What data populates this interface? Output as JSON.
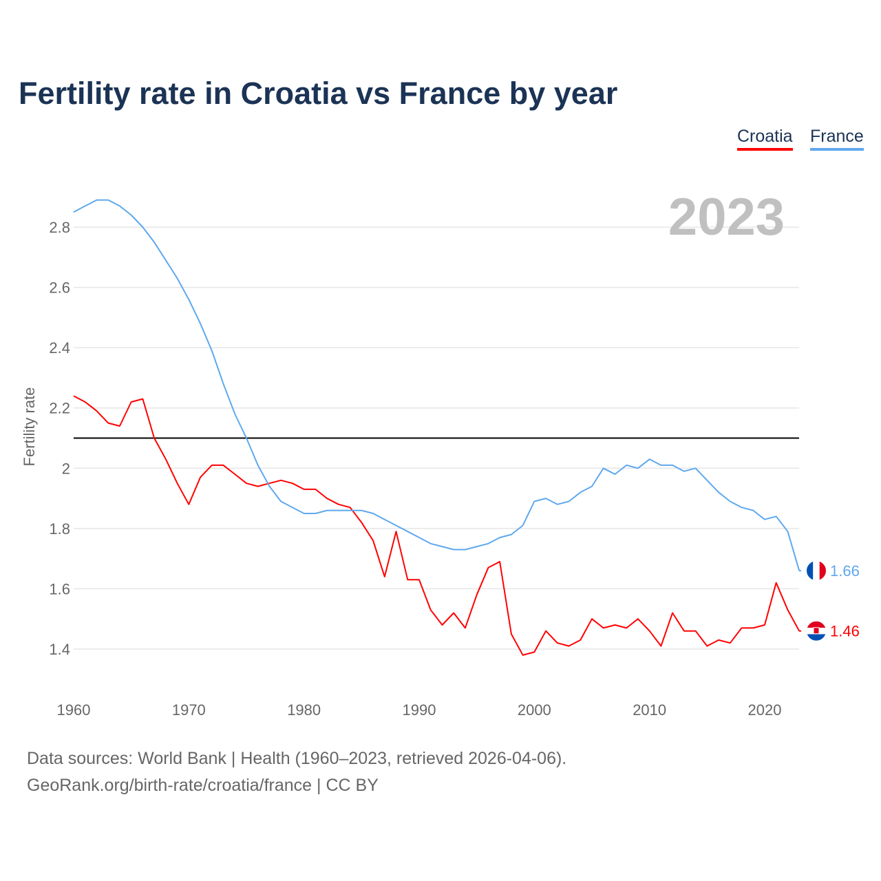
{
  "title": "Fertility rate in Croatia vs France by year",
  "year_label": "2023",
  "footer": {
    "line1": "Data sources: World Bank | Health (1960–2023, retrieved 2026-04-06).",
    "line2": "GeoRank.org/birth-rate/croatia/france | CC BY"
  },
  "chart_data": {
    "type": "line",
    "title": "Fertility rate in Croatia vs France by year",
    "xlabel": "",
    "ylabel": "Fertility rate",
    "xlim": [
      1960,
      2023
    ],
    "ylim": [
      1.3,
      2.95
    ],
    "xticks": [
      1960,
      1970,
      1980,
      1990,
      2000,
      2010,
      2020
    ],
    "yticks": [
      1.4,
      1.6,
      1.8,
      2,
      2.2,
      2.4,
      2.6,
      2.8
    ],
    "grid": true,
    "legend_position": "top-right",
    "reference_line": 2.1,
    "start_year": 1960,
    "series": [
      {
        "name": "Croatia",
        "color": "#ff0000",
        "end_label": "1.46",
        "flag": "croatia-flag",
        "values": [
          2.24,
          2.22,
          2.19,
          2.15,
          2.14,
          2.22,
          2.23,
          2.1,
          2.03,
          1.95,
          1.88,
          1.97,
          2.01,
          2.01,
          1.98,
          1.95,
          1.94,
          1.95,
          1.96,
          1.95,
          1.93,
          1.93,
          1.9,
          1.88,
          1.87,
          1.82,
          1.76,
          1.64,
          1.79,
          1.63,
          1.63,
          1.53,
          1.48,
          1.52,
          1.47,
          1.58,
          1.67,
          1.69,
          1.45,
          1.38,
          1.39,
          1.46,
          1.42,
          1.41,
          1.43,
          1.5,
          1.47,
          1.48,
          1.47,
          1.5,
          1.46,
          1.41,
          1.52,
          1.46,
          1.46,
          1.41,
          1.43,
          1.42,
          1.47,
          1.47,
          1.48,
          1.62,
          1.53,
          1.46
        ]
      },
      {
        "name": "France",
        "color": "#5ea8ee",
        "end_label": "1.66",
        "flag": "france-flag",
        "values": [
          2.85,
          2.87,
          2.89,
          2.89,
          2.87,
          2.84,
          2.8,
          2.75,
          2.69,
          2.63,
          2.56,
          2.48,
          2.39,
          2.28,
          2.18,
          2.1,
          2.01,
          1.94,
          1.89,
          1.87,
          1.85,
          1.85,
          1.86,
          1.86,
          1.86,
          1.86,
          1.85,
          1.83,
          1.81,
          1.79,
          1.77,
          1.75,
          1.74,
          1.73,
          1.73,
          1.74,
          1.75,
          1.77,
          1.78,
          1.81,
          1.89,
          1.9,
          1.88,
          1.89,
          1.92,
          1.94,
          2.0,
          1.98,
          2.01,
          2.0,
          2.03,
          2.01,
          2.01,
          1.99,
          2.0,
          1.96,
          1.92,
          1.89,
          1.87,
          1.86,
          1.83,
          1.84,
          1.79,
          1.66
        ]
      }
    ]
  }
}
